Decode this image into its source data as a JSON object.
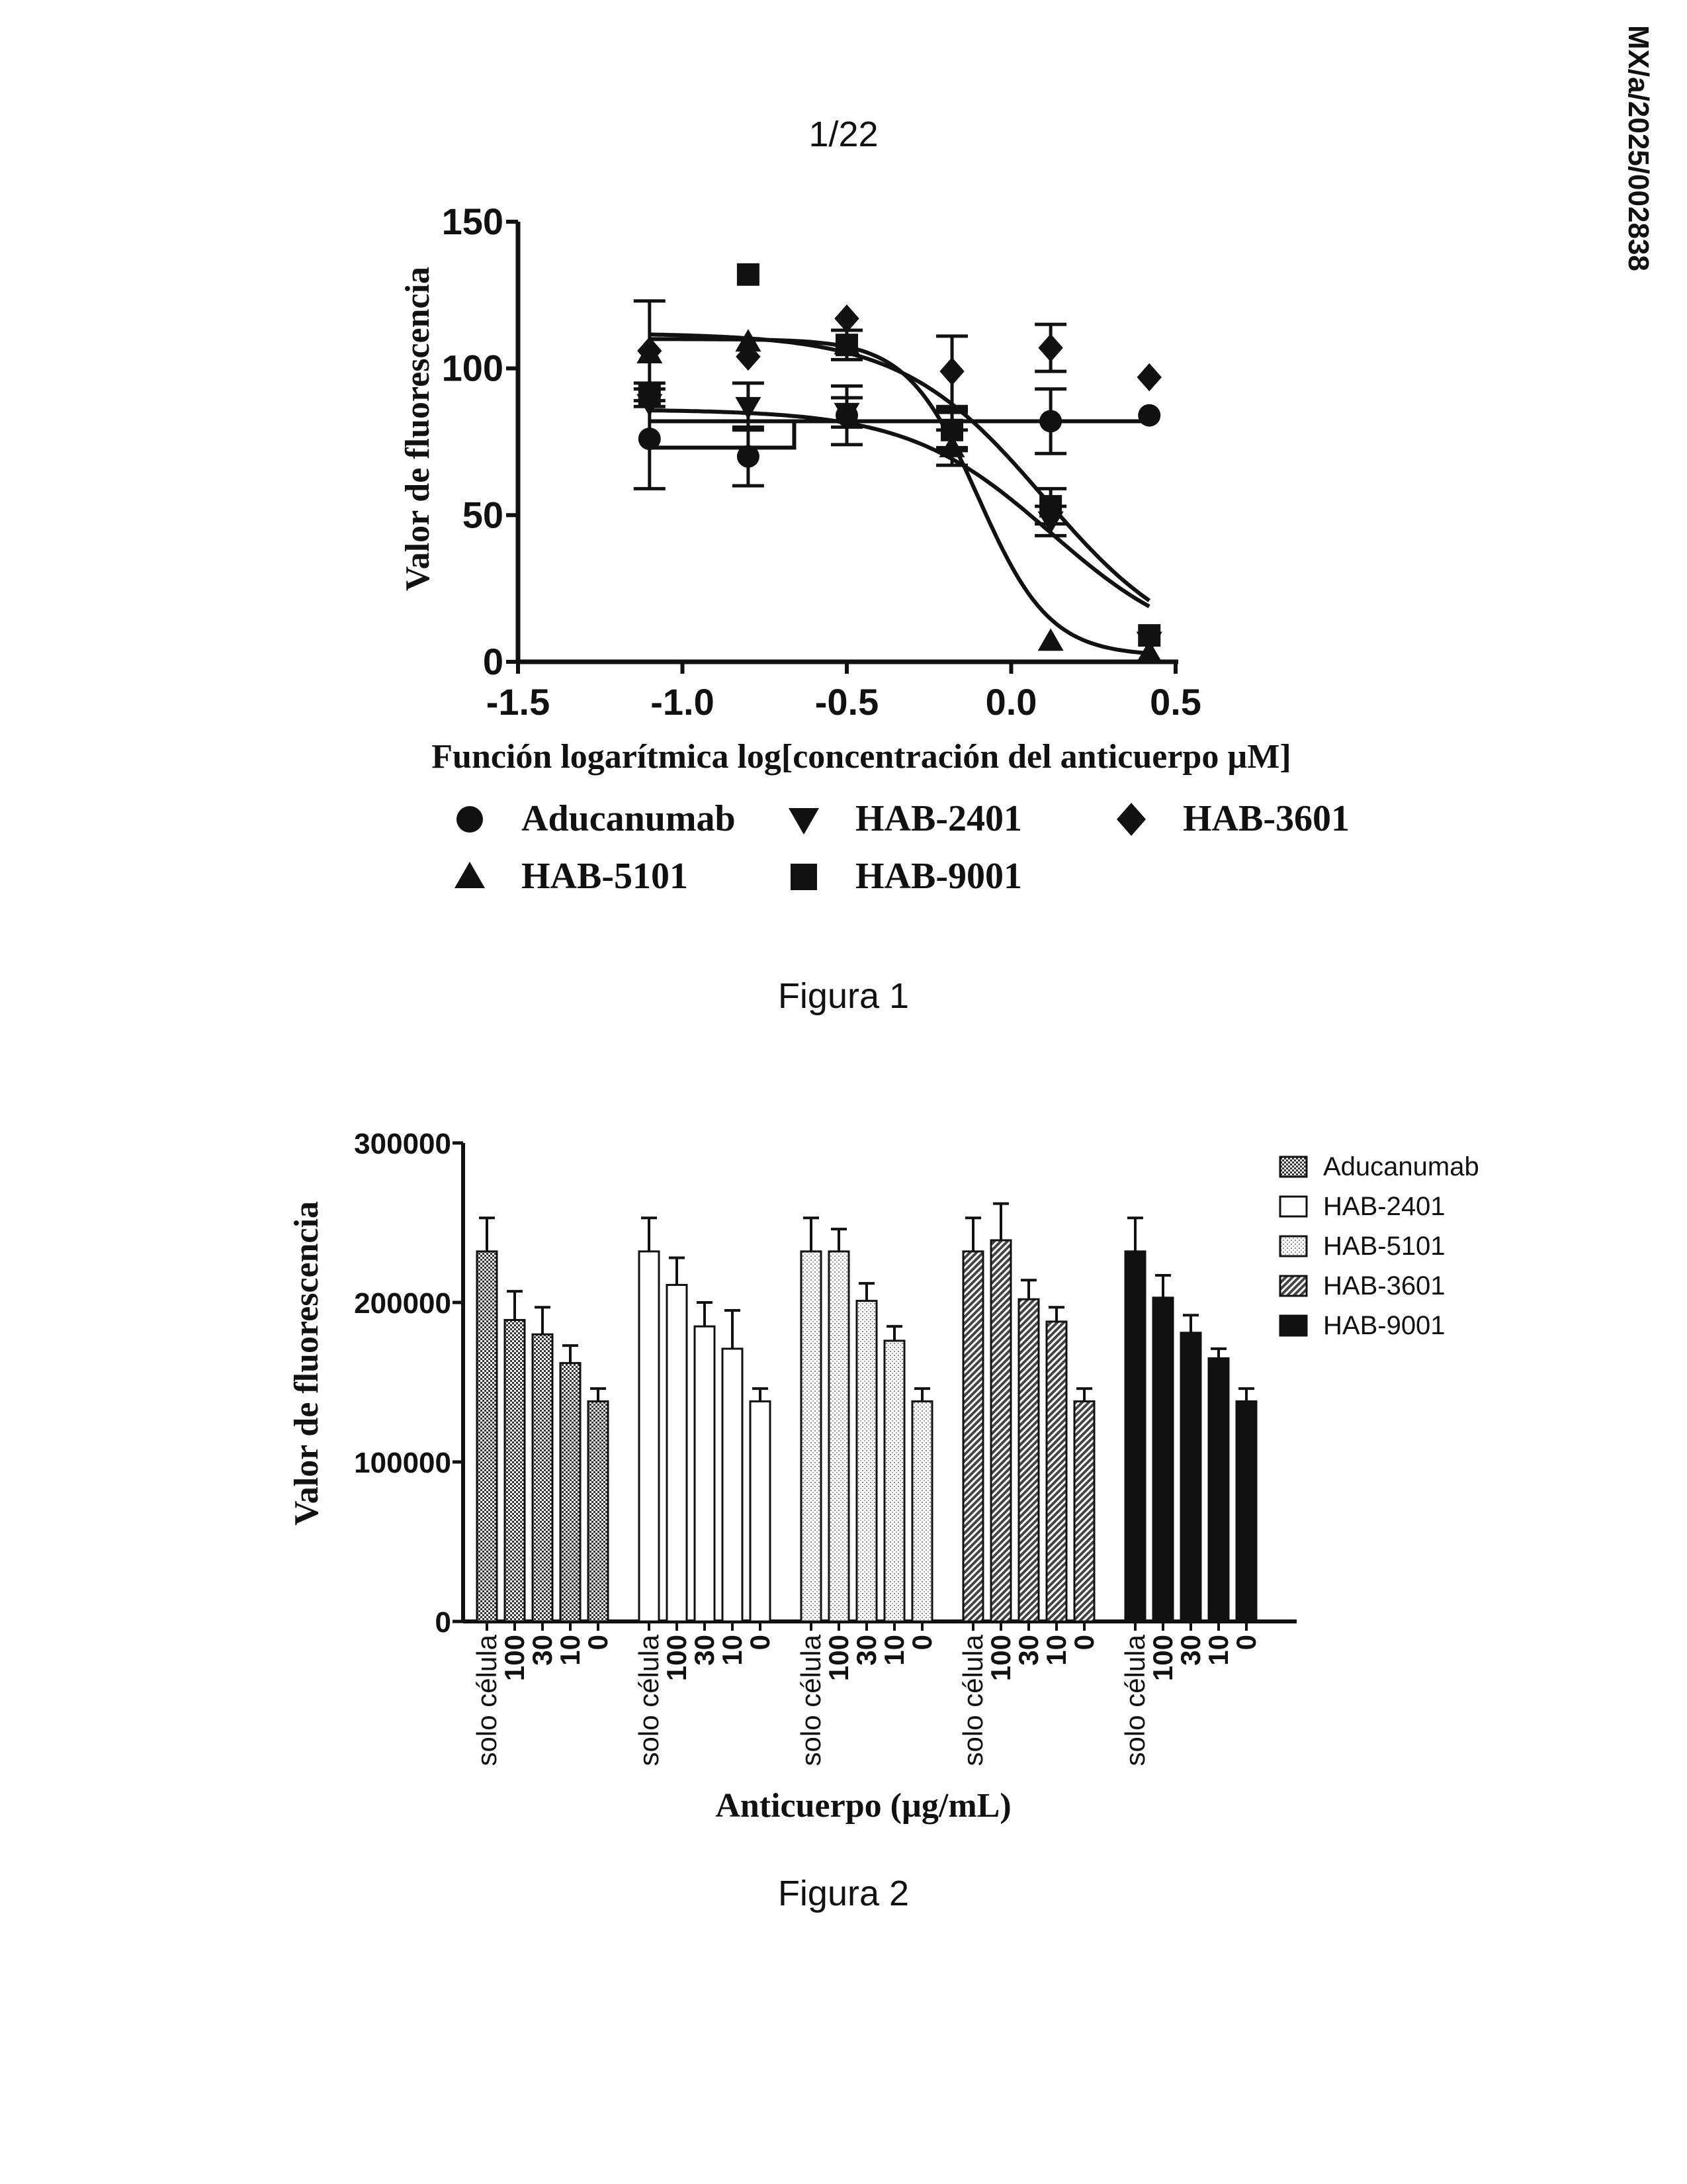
{
  "document": {
    "page_number": "1/22",
    "doc_id": "MX/a/2025/002838",
    "figure1_caption": "Figura 1",
    "figure2_caption": "Figura 2"
  },
  "colors": {
    "ink": "#111111",
    "background": "#ffffff"
  },
  "chart_data": [
    {
      "type": "scatter",
      "title": "",
      "xlabel": "Función logarítmica log[concentración del anticuerpo µM]",
      "ylabel": "Valor de fluorescencia",
      "xlim": [
        -1.5,
        0.5
      ],
      "ylim": [
        0,
        150
      ],
      "xticks": [
        -1.5,
        -1.0,
        -0.5,
        0.0,
        0.5
      ],
      "xtick_labels": [
        "-1.5",
        "-1.0",
        "-0.5",
        "0.0",
        "0.5"
      ],
      "yticks": [
        0,
        50,
        100,
        150
      ],
      "ytick_labels": [
        "0",
        "50",
        "100",
        "150"
      ],
      "series": [
        {
          "name": "Aducanumab",
          "marker": "circle",
          "x": [
            -1.1,
            -0.8,
            -0.5,
            -0.18,
            0.12,
            0.42
          ],
          "y": [
            76,
            70,
            84,
            79,
            82,
            84
          ],
          "err": [
            17,
            10,
            10,
            7,
            11,
            0
          ],
          "fit": "flat",
          "fit_level": 82
        },
        {
          "name": "HAB-2401",
          "marker": "triangle-down",
          "x": [
            -1.1,
            -0.8,
            -0.5,
            -0.18,
            0.12,
            0.42
          ],
          "y": [
            88,
            87,
            85,
            79,
            48,
            7
          ],
          "err": [
            0,
            8,
            5,
            6,
            5,
            0
          ],
          "fit": "sigmoid",
          "top": 86,
          "bottom": 2,
          "logEC50": 0.12,
          "hill": 2.0
        },
        {
          "name": "HAB-3601",
          "marker": "diamond",
          "x": [
            -1.1,
            -0.8,
            -0.5,
            -0.18,
            0.12,
            0.42
          ],
          "y": [
            106,
            104,
            117,
            99,
            107,
            97
          ],
          "err": [
            17,
            0,
            0,
            12,
            8,
            0
          ],
          "fit": "flat-step",
          "fit_levels": [
            73,
            82
          ],
          "step_at": -0.66
        },
        {
          "name": "HAB-5101",
          "marker": "triangle-up",
          "x": [
            -1.1,
            -0.8,
            -0.5,
            -0.18,
            0.12,
            0.42
          ],
          "y": [
            105,
            109,
            108,
            73,
            7,
            3
          ],
          "err": [
            0,
            0,
            0,
            6,
            0,
            0
          ],
          "fit": "sigmoid",
          "top": 110,
          "bottom": 2,
          "logEC50": -0.1,
          "hill": 4.0
        },
        {
          "name": "HAB-9001",
          "marker": "square",
          "x": [
            -1.1,
            -0.8,
            -0.5,
            -0.18,
            0.12,
            0.42
          ],
          "y": [
            91,
            132,
            108,
            79,
            53,
            9
          ],
          "err": [
            4,
            0,
            5,
            7,
            6,
            0
          ],
          "fit": "sigmoid",
          "top": 112,
          "bottom": 0,
          "logEC50": 0.1,
          "hill": 2.0
        }
      ]
    },
    {
      "type": "bar",
      "title": "",
      "xlabel": "Anticuerpo (µg/mL)",
      "ylabel": "Valor de fluorescencia",
      "ylim": [
        0,
        300000
      ],
      "yticks": [
        0,
        100000,
        200000,
        300000
      ],
      "ytick_labels": [
        "0",
        "100000",
        "200000",
        "300000"
      ],
      "categories": [
        "solo célula",
        "100",
        "30",
        "10",
        "0"
      ],
      "series": [
        {
          "name": "Aducanumab",
          "pattern": "checker",
          "values": [
            232000,
            189000,
            180000,
            162000,
            138000
          ],
          "err": [
            21000,
            18000,
            17000,
            11000,
            8000
          ]
        },
        {
          "name": "HAB-2401",
          "pattern": "white",
          "values": [
            232000,
            211000,
            185000,
            171000,
            138000
          ],
          "err": [
            21000,
            17000,
            15000,
            24000,
            8000
          ]
        },
        {
          "name": "HAB-5101",
          "pattern": "light-dots",
          "values": [
            232000,
            232000,
            201000,
            176000,
            138000
          ],
          "err": [
            21000,
            14000,
            11000,
            9000,
            8000
          ]
        },
        {
          "name": "HAB-3601",
          "pattern": "hatch",
          "values": [
            232000,
            239000,
            202000,
            188000,
            138000
          ],
          "err": [
            21000,
            23000,
            12000,
            9000,
            8000
          ]
        },
        {
          "name": "HAB-9001",
          "pattern": "black",
          "values": [
            232000,
            203000,
            181000,
            165000,
            138000
          ],
          "err": [
            21000,
            14000,
            11000,
            6000,
            8000
          ]
        }
      ]
    }
  ]
}
